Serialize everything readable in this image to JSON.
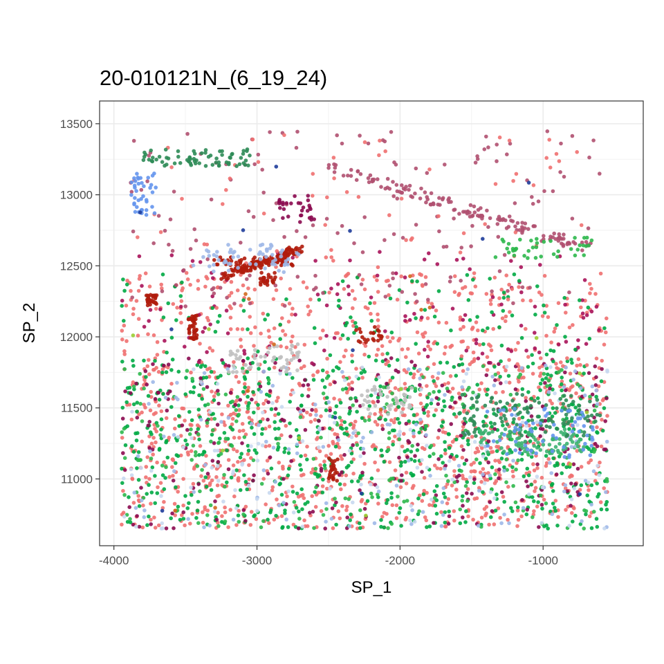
{
  "chart_data": {
    "type": "scatter",
    "title": "20-010121N_(6_19_24)",
    "xlabel": "SP_1",
    "ylabel": "SP_2",
    "xlim": [
      -4100,
      -300
    ],
    "ylim": [
      10530,
      13660
    ],
    "x_ticks": [
      -4000,
      -3000,
      -2000,
      -1000
    ],
    "x_tick_labels": [
      "-4000",
      "-3000",
      "-2000",
      "-1000"
    ],
    "y_ticks": [
      11000,
      11500,
      12000,
      12500,
      13000,
      13500
    ],
    "y_tick_labels": [
      "11000",
      "11500",
      "12000",
      "12500",
      "13000",
      "13500"
    ],
    "grid": true,
    "theme": "bw",
    "legend": "none",
    "point_colors": [
      "#f07070",
      "#00aa44",
      "#8b0a50",
      "#a8135a",
      "#b01c0c",
      "#2db84d",
      "#9eb8e8",
      "#6495ed",
      "#c0c0c0",
      "#3cb371",
      "#2e8b57",
      "#b05070",
      "#1e3c9a",
      "#9acd32",
      "#d2691e",
      "#c8d8f0"
    ],
    "clusters": [
      {
        "name": "",
        "color": "#f07070",
        "n": 900,
        "x": [
          -3950,
          -550
        ],
        "y": [
          10650,
          11800
        ],
        "shape": "rect"
      },
      {
        "name": "",
        "color": "#00aa44",
        "n": 650,
        "x": [
          -3950,
          -550
        ],
        "y": [
          10650,
          11850
        ],
        "shape": "rect"
      },
      {
        "name": "",
        "color": "#8b0a50",
        "n": 260,
        "x": [
          -3950,
          -550
        ],
        "y": [
          10650,
          11850
        ],
        "shape": "rect"
      },
      {
        "name": "",
        "color": "#2db84d",
        "n": 220,
        "x": [
          -3950,
          -550
        ],
        "y": [
          10650,
          11800
        ],
        "shape": "rect"
      },
      {
        "name": "",
        "color": "#9eb8e8",
        "n": 140,
        "x": [
          -3950,
          -550
        ],
        "y": [
          10650,
          11800
        ],
        "shape": "rect"
      },
      {
        "name": "",
        "color": "#c8d8f0",
        "n": 120,
        "x": [
          -3950,
          -550
        ],
        "y": [
          10650,
          11800
        ],
        "shape": "rect"
      },
      {
        "name": "",
        "color": "#f07070",
        "n": 300,
        "x": [
          -3950,
          -550
        ],
        "y": [
          11800,
          12450
        ],
        "shape": "rect"
      },
      {
        "name": "",
        "color": "#a8135a",
        "n": 120,
        "x": [
          -3950,
          -550
        ],
        "y": [
          11800,
          12600
        ],
        "shape": "rect"
      },
      {
        "name": "",
        "color": "#00aa44",
        "n": 110,
        "x": [
          -3950,
          -550
        ],
        "y": [
          11800,
          12450
        ],
        "shape": "rect"
      },
      {
        "name": "",
        "color": "#b05070",
        "n": 160,
        "x": [
          -3900,
          -600
        ],
        "y": [
          12200,
          13450
        ],
        "shape": "rect"
      },
      {
        "name": "",
        "color": "#f07070",
        "n": 90,
        "x": [
          -3900,
          -600
        ],
        "y": [
          12200,
          13450
        ],
        "shape": "rect"
      },
      {
        "name": "",
        "color": "#b01c0c",
        "n": 120,
        "x": [
          -3250,
          -2700
        ],
        "y": [
          12420,
          12620
        ],
        "shape": "line",
        "x2": [
          -2700,
          -3250
        ],
        "y2": [
          12620,
          12500
        ]
      },
      {
        "name": "",
        "color": "#b01c0c",
        "n": 60,
        "x": [
          -3300,
          -2750
        ],
        "y": [
          12500,
          12560
        ],
        "shape": "band"
      },
      {
        "name": "",
        "color": "#b01c0c",
        "n": 40,
        "x": [
          -3480,
          -3420
        ],
        "y": [
          11980,
          12150
        ],
        "shape": "band"
      },
      {
        "name": "",
        "color": "#b01c0c",
        "n": 28,
        "x": [
          -3780,
          -3700
        ],
        "y": [
          12220,
          12300
        ],
        "shape": "band"
      },
      {
        "name": "",
        "color": "#b01c0c",
        "n": 22,
        "x": [
          -2320,
          -2120
        ],
        "y": [
          11960,
          12080
        ],
        "shape": "band"
      },
      {
        "name": "",
        "color": "#b01c0c",
        "n": 22,
        "x": [
          -2500,
          -2430
        ],
        "y": [
          10980,
          11150
        ],
        "shape": "band"
      },
      {
        "name": "",
        "color": "#b01c0c",
        "n": 24,
        "x": [
          -2980,
          -2870
        ],
        "y": [
          12360,
          12470
        ],
        "shape": "band"
      },
      {
        "name": "",
        "color": "#2e8b57",
        "n": 120,
        "x": [
          -1600,
          -600
        ],
        "y": [
          11300,
          11600
        ],
        "shape": "band"
      },
      {
        "name": "",
        "color": "#3cb371",
        "n": 90,
        "x": [
          -1450,
          -700
        ],
        "y": [
          11180,
          11350
        ],
        "shape": "band"
      },
      {
        "name": "",
        "color": "#6495ed",
        "n": 60,
        "x": [
          -1400,
          -650
        ],
        "y": [
          11150,
          11500
        ],
        "shape": "band"
      },
      {
        "name": "",
        "color": "#c0c0c0",
        "n": 50,
        "x": [
          -3200,
          -2700
        ],
        "y": [
          11750,
          11950
        ],
        "shape": "band"
      },
      {
        "name": "",
        "color": "#c0c0c0",
        "n": 40,
        "x": [
          -2300,
          -1900
        ],
        "y": [
          11450,
          11650
        ],
        "shape": "band"
      },
      {
        "name": "",
        "color": "#b05070",
        "n": 140,
        "x": [
          -2500,
          -650
        ],
        "y": [
          12620,
          13200
        ],
        "shape": "arc"
      },
      {
        "name": "",
        "color": "#2e8b57",
        "n": 70,
        "x": [
          -3800,
          -3050
        ],
        "y": [
          13200,
          13320
        ],
        "shape": "band"
      },
      {
        "name": "",
        "color": "#6495ed",
        "n": 40,
        "x": [
          -3880,
          -3700
        ],
        "y": [
          12850,
          13150
        ],
        "shape": "band"
      },
      {
        "name": "",
        "color": "#9eb8e8",
        "n": 60,
        "x": [
          -3450,
          -2700
        ],
        "y": [
          12450,
          12650
        ],
        "shape": "band"
      },
      {
        "name": "",
        "color": "#2db84d",
        "n": 40,
        "x": [
          -1350,
          -650
        ],
        "y": [
          12550,
          12700
        ],
        "shape": "band"
      },
      {
        "name": "",
        "color": "#8b0a50",
        "n": 30,
        "x": [
          -2850,
          -2600
        ],
        "y": [
          12800,
          13000
        ],
        "shape": "band"
      },
      {
        "name": "",
        "color": "#1e3c9a",
        "n": 12,
        "x": [
          -3900,
          -650
        ],
        "y": [
          10700,
          13450
        ],
        "shape": "rect"
      },
      {
        "name": "",
        "color": "#9acd32",
        "n": 10,
        "x": [
          -3900,
          -650
        ],
        "y": [
          10700,
          12600
        ],
        "shape": "rect"
      },
      {
        "name": "",
        "color": "#d2691e",
        "n": 10,
        "x": [
          -3900,
          -650
        ],
        "y": [
          10700,
          12800
        ],
        "shape": "rect"
      }
    ]
  }
}
